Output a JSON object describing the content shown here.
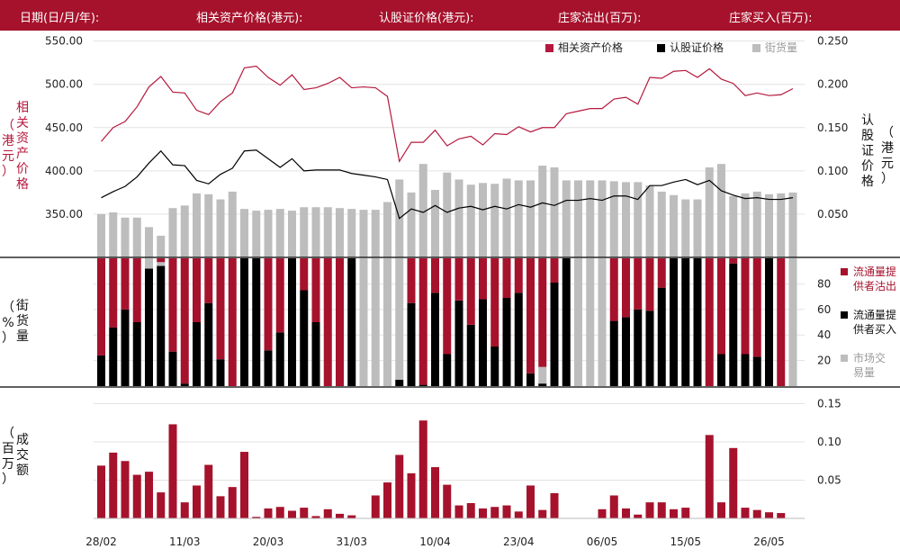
{
  "header": {
    "date": "日期(日/月/年):",
    "underlying_price": "相关资产价格(港元):",
    "warrant_price": "认股证价格(港元):",
    "issuer_sold": "庄家沽出(百万):",
    "issuer_bought": "庄家买入(百万):"
  },
  "colors": {
    "brand": "#a6122c",
    "underlying": "#b5183d",
    "warrant": "#000000",
    "outstanding": "#bdbdbd"
  },
  "axis_titles": {
    "left_top": [
      "相",
      "关",
      "资",
      "产",
      "价",
      "格"
    ],
    "left_top_unit": [
      "（",
      "港",
      "元",
      "）"
    ],
    "right_top": [
      "认",
      "股",
      "证",
      "价",
      "格"
    ],
    "right_top_unit": [
      "（",
      "港",
      "元",
      "）"
    ],
    "left_mid": [
      "街",
      "货",
      "量"
    ],
    "left_mid_unit": [
      "（",
      "%",
      "）"
    ],
    "left_bottom": [
      "成",
      "交",
      "额"
    ],
    "left_bottom_unit": [
      "（",
      "百",
      "万",
      "）"
    ]
  },
  "chart_data": {
    "type": "combo",
    "x_tick_labels": [
      "28/02",
      "11/03",
      "20/03",
      "31/03",
      "10/04",
      "23/04",
      "06/05",
      "15/05",
      "26/05"
    ],
    "x_tick_indices": [
      0,
      7,
      14,
      21,
      28,
      35,
      42,
      49,
      56
    ],
    "panels": [
      {
        "name": "price",
        "legend": [
          "相关资产价格",
          "认股证价格",
          "街货量"
        ],
        "left_axis": {
          "ticks": [
            "550.00",
            "500.00",
            "450.00",
            "400.00",
            "350.00"
          ],
          "range": [
            300,
            560
          ]
        },
        "right_axis": {
          "ticks": [
            "0.250",
            "0.200",
            "0.150",
            "0.100",
            "0.050"
          ],
          "range": [
            0.0,
            0.26
          ]
        },
        "series": [
          {
            "name": "相关资产价格",
            "axis": "left",
            "values": [
              434,
              450,
              457,
              474,
              497,
              509,
              491,
              490,
              470,
              465,
              480,
              490,
              519,
              521,
              508,
              499,
              511,
              494,
              496,
              501,
              508,
              496,
              497,
              496,
              486,
              411,
              433,
              433,
              447,
              429,
              437,
              440,
              430,
              443,
              442,
              451,
              445,
              450,
              450,
              466,
              469,
              472,
              472,
              483,
              485,
              477,
              508,
              507,
              515,
              516,
              508,
              518,
              506,
              501,
              487,
              490,
              487,
              488,
              495
            ]
          },
          {
            "name": "认股证价格",
            "axis": "right",
            "values": [
              0.069,
              0.076,
              0.082,
              0.093,
              0.109,
              0.123,
              0.107,
              0.106,
              0.089,
              0.085,
              0.096,
              0.103,
              0.123,
              0.124,
              0.114,
              0.104,
              0.114,
              0.1,
              0.101,
              0.101,
              0.101,
              0.097,
              0.095,
              0.093,
              0.09,
              0.045,
              0.056,
              0.052,
              0.06,
              0.052,
              0.057,
              0.059,
              0.055,
              0.059,
              0.056,
              0.061,
              0.058,
              0.063,
              0.06,
              0.066,
              0.066,
              0.068,
              0.066,
              0.071,
              0.071,
              0.067,
              0.083,
              0.083,
              0.087,
              0.09,
              0.084,
              0.089,
              0.077,
              0.072,
              0.068,
              0.069,
              0.067,
              0.067,
              0.069
            ]
          },
          {
            "name": "街货量",
            "axis": "bars",
            "values": [
              0.05,
              0.052,
              0.046,
              0.046,
              0.035,
              0.025,
              0.057,
              0.06,
              0.074,
              0.073,
              0.067,
              0.076,
              0.056,
              0.054,
              0.055,
              0.056,
              0.054,
              0.058,
              0.058,
              0.058,
              0.057,
              0.056,
              0.055,
              0.055,
              0.064,
              0.09,
              0.075,
              0.108,
              0.078,
              0.098,
              0.09,
              0.084,
              0.086,
              0.085,
              0.091,
              0.089,
              0.089,
              0.106,
              0.104,
              0.089,
              0.089,
              0.089,
              0.089,
              0.088,
              0.087,
              0.087,
              0.083,
              0.076,
              0.072,
              0.067,
              0.067,
              0.104,
              0.108,
              0.071,
              0.074,
              0.076,
              0.073,
              0.074,
              0.075
            ]
          }
        ]
      },
      {
        "name": "outstanding_pct",
        "legend": [
          "流通量提供者沽出",
          "流通量提供者买入",
          "市场交易量"
        ],
        "axis": {
          "ticks": [
            "80",
            "60",
            "40",
            "20"
          ],
          "range": [
            0,
            100
          ]
        },
        "stack_series": [
          {
            "name": "流通量提供者沽出",
            "values": [
              76,
              54,
              40,
              50,
              0,
              3,
              73,
              98,
              50,
              35,
              79,
              100,
              0,
              0,
              72,
              58,
              0,
              25,
              50,
              100,
              100,
              0,
              0,
              0,
              0,
              0,
              35,
              99,
              27,
              75,
              33,
              52,
              32,
              69,
              31,
              27,
              90,
              85,
              19,
              0,
              0,
              0,
              0,
              49,
              46,
              40,
              41,
              23,
              0,
              0,
              0,
              100,
              75,
              4,
              75,
              77,
              0,
              100,
              0
            ]
          },
          {
            "name": "流通量提供者买入",
            "values": [
              24,
              46,
              60,
              50,
              92,
              94,
              27,
              2,
              50,
              65,
              21,
              0,
              100,
              100,
              28,
              42,
              100,
              75,
              50,
              0,
              0,
              100,
              0,
              0,
              0,
              5,
              65,
              1,
              73,
              25,
              67,
              48,
              68,
              31,
              69,
              73,
              10,
              2,
              81,
              100,
              0,
              0,
              0,
              51,
              54,
              60,
              59,
              77,
              100,
              100,
              100,
              0,
              25,
              96,
              25,
              23,
              100,
              0,
              0
            ]
          },
          {
            "name": "市场交易量",
            "values": [
              0,
              0,
              0,
              0,
              8,
              3,
              0,
              0,
              0,
              0,
              0,
              0,
              0,
              0,
              0,
              0,
              0,
              0,
              0,
              0,
              0,
              0,
              100,
              100,
              100,
              95,
              0,
              0,
              0,
              0,
              0,
              0,
              0,
              0,
              0,
              0,
              0,
              13,
              0,
              0,
              100,
              100,
              100,
              0,
              0,
              0,
              0,
              0,
              0,
              0,
              0,
              0,
              0,
              0,
              0,
              0,
              0,
              0,
              100
            ]
          }
        ]
      },
      {
        "name": "turnover",
        "axis": {
          "ticks": [
            "0.15",
            "0.10",
            "0.05"
          ],
          "range": [
            0,
            0.16
          ]
        },
        "series": [
          {
            "name": "成交额",
            "values": [
              0.069,
              0.086,
              0.075,
              0.057,
              0.061,
              0.034,
              0.123,
              0.021,
              0.043,
              0.07,
              0.029,
              0.041,
              0.087,
              0.002,
              0.013,
              0.015,
              0.01,
              0.014,
              0.003,
              0.012,
              0.006,
              0.004,
              0.0,
              0.03,
              0.047,
              0.083,
              0.059,
              0.128,
              0.067,
              0.044,
              0.017,
              0.02,
              0.013,
              0.015,
              0.017,
              0.009,
              0.043,
              0.011,
              0.033,
              0.0,
              0.0,
              0.0,
              0.012,
              0.03,
              0.013,
              0.005,
              0.021,
              0.021,
              0.012,
              0.014,
              0.0,
              0.109,
              0.021,
              0.092,
              0.014,
              0.011,
              0.008,
              0.007,
              0.0
            ]
          }
        ]
      }
    ]
  }
}
